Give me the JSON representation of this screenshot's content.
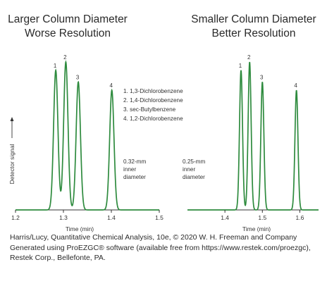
{
  "chart_data": [
    {
      "type": "line",
      "title": "Larger Column Diameter",
      "subtitle": "Worse Resolution",
      "xlabel": "Time (min)",
      "ylabel": "Detector signal",
      "xlim": [
        1.2,
        1.5
      ],
      "x_ticks": [
        "1.2",
        "1.3",
        "1.4",
        "1.5"
      ],
      "grid": false,
      "line_color": "#2e8b3e",
      "peaks": [
        {
          "label": "1",
          "x": 1.284,
          "height": 0.84,
          "width": 0.0045
        },
        {
          "label": "2",
          "x": 1.305,
          "height": 0.89,
          "width": 0.0045
        },
        {
          "label": "3",
          "x": 1.331,
          "height": 0.77,
          "width": 0.0045
        },
        {
          "label": "4",
          "x": 1.401,
          "height": 0.72,
          "width": 0.0045
        }
      ],
      "legend": [
        "1. 1,3-Dichlorobenzene",
        "2. 1,4-Dichlorobenzene",
        "3. sec-Butylbenzene",
        "4. 1,2-Dichlorobenzene"
      ],
      "annotation": [
        "0.32-mm",
        "inner",
        "diameter"
      ]
    },
    {
      "type": "line",
      "title": "Smaller Column Diameter",
      "subtitle": "Better Resolution",
      "xlabel": "Time (min)",
      "ylabel": "",
      "xlim": [
        1.3,
        1.65
      ],
      "x_ticks": [
        "1.4",
        "1.5",
        "1.6"
      ],
      "grid": false,
      "line_color": "#2e8b3e",
      "peaks": [
        {
          "label": "1",
          "x": 1.443,
          "height": 0.84,
          "width": 0.004
        },
        {
          "label": "2",
          "x": 1.466,
          "height": 0.89,
          "width": 0.004
        },
        {
          "label": "3",
          "x": 1.5,
          "height": 0.77,
          "width": 0.004
        },
        {
          "label": "4",
          "x": 1.591,
          "height": 0.72,
          "width": 0.004
        }
      ],
      "annotation": [
        "0.25-mm",
        "inner",
        "diameter"
      ]
    }
  ],
  "caption": {
    "line1": "Harris/Lucy, Quantitative Chemical Analysis, 10e, © 2020 W. H. Freeman and Company",
    "line2": "Generated using ProEZGC® software (available free from https://www.restek.com/proezgc),",
    "line3": "Restek Corp., Bellefonte, PA."
  }
}
